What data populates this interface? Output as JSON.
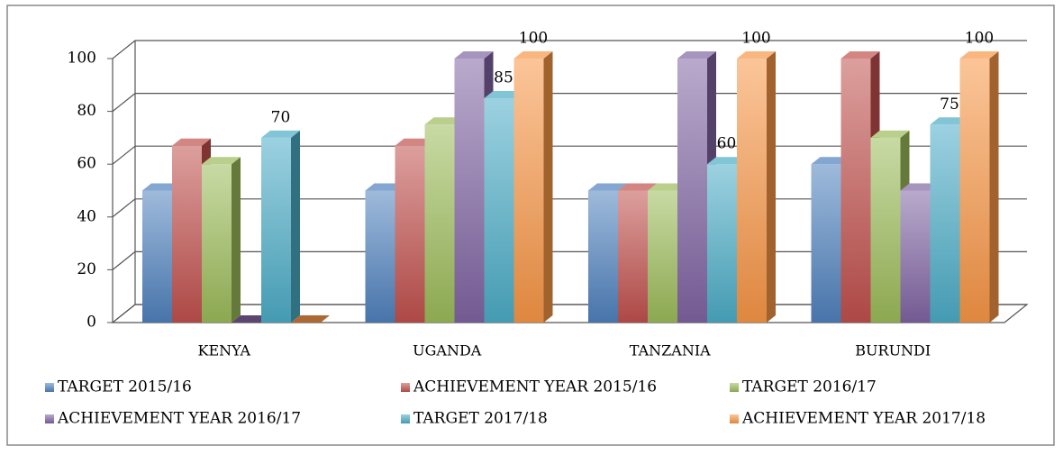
{
  "chart_data": {
    "type": "bar3d",
    "categories": [
      "KENYA",
      "UGANDA",
      "TANZANIA",
      "BURUNDI"
    ],
    "series": [
      {
        "name": "TARGET 2015/16",
        "color": "#4f81bd",
        "values": [
          50,
          50,
          50,
          60
        ]
      },
      {
        "name": "ACHIEVEMENT YEAR 2015/16",
        "color": "#c0504d",
        "values": [
          67,
          67,
          50,
          100
        ]
      },
      {
        "name": "TARGET 2016/17",
        "color": "#9bbb59",
        "values": [
          60,
          75,
          50,
          70
        ]
      },
      {
        "name": "ACHIEVEMENT YEAR 2016/17",
        "color": "#8064a2",
        "values": [
          0,
          100,
          100,
          50
        ]
      },
      {
        "name": "TARGET 2017/18",
        "color": "#4bacc6",
        "values": [
          70,
          85,
          60,
          75
        ],
        "labels": true
      },
      {
        "name": "ACHIEVEMENT YEAR 2017/18",
        "color": "#f79646",
        "values": [
          0,
          100,
          100,
          100
        ],
        "labels": true
      }
    ],
    "ylim": [
      0,
      100
    ],
    "yticks": [
      0,
      20,
      40,
      60,
      80,
      100
    ],
    "grid": true,
    "legend": "bottom"
  }
}
